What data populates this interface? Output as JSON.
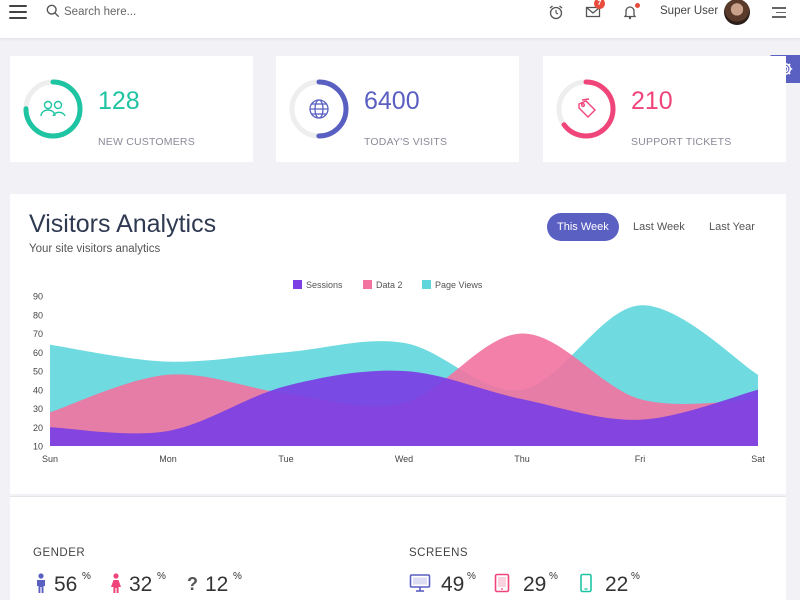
{
  "topbar": {
    "search_placeholder": "Search here...",
    "mail_badge": "7",
    "username": "Super User",
    "icons": [
      "menu-icon",
      "search-icon",
      "alarm-clock-icon",
      "mail-icon",
      "bell-icon",
      "avatar",
      "sidebar-menu-icon"
    ]
  },
  "stats": [
    {
      "value": "128",
      "label": "NEW CUSTOMERS",
      "color": "#1fc4a3",
      "icon": "users-icon",
      "progress": 0.75
    },
    {
      "value": "6400",
      "label": "TODAY'S VISITS",
      "color": "#5a5fc2",
      "icon": "globe-icon",
      "progress": 0.5
    },
    {
      "value": "210",
      "label": "SUPPORT TICKETS",
      "color": "#f0457a",
      "icon": "tag-icon",
      "progress": 0.65
    }
  ],
  "analytics": {
    "title": "Visitors Analytics",
    "subtitle": "Your site visitors analytics",
    "tabs": [
      "This Week",
      "Last Week",
      "Last Year"
    ],
    "active_tab": "This Week"
  },
  "chart_data": {
    "type": "area",
    "categories": [
      "Sun",
      "Mon",
      "Tue",
      "Wed",
      "Thu",
      "Fri",
      "Sat"
    ],
    "yticks": [
      10,
      20,
      30,
      40,
      50,
      60,
      70,
      80,
      90
    ],
    "ylim": [
      10,
      90
    ],
    "legend_position": "top-center",
    "grid": false,
    "series": [
      {
        "name": "Page Views",
        "color": "#5fd6db",
        "values": [
          64,
          55,
          60,
          65,
          40,
          85,
          48
        ]
      },
      {
        "name": "Data 2",
        "color": "#f272a0",
        "values": [
          28,
          48,
          38,
          33,
          70,
          35,
          35
        ]
      },
      {
        "name": "Sessions",
        "color": "#7b3fe4",
        "values": [
          20,
          18,
          42,
          50,
          35,
          24,
          40
        ]
      }
    ],
    "legend": [
      "Sessions",
      "Data 2",
      "Page Views"
    ]
  },
  "gender": {
    "title": "GENDER",
    "items": [
      {
        "icon": "male-icon",
        "value": "56",
        "unit": "%",
        "color": "#5a5fc2"
      },
      {
        "icon": "female-icon",
        "value": "32",
        "unit": "%",
        "color": "#f0457a"
      },
      {
        "icon": "question-icon",
        "value": "12",
        "unit": "%",
        "color": "#555"
      }
    ]
  },
  "screens": {
    "title": "SCREENS",
    "items": [
      {
        "icon": "desktop-icon",
        "value": "49",
        "unit": "%",
        "color": "#5a5fc2"
      },
      {
        "icon": "tablet-icon",
        "value": "29",
        "unit": "%",
        "color": "#f0457a"
      },
      {
        "icon": "mobile-icon",
        "value": "22",
        "unit": "%",
        "color": "#1fc4a3"
      }
    ]
  }
}
